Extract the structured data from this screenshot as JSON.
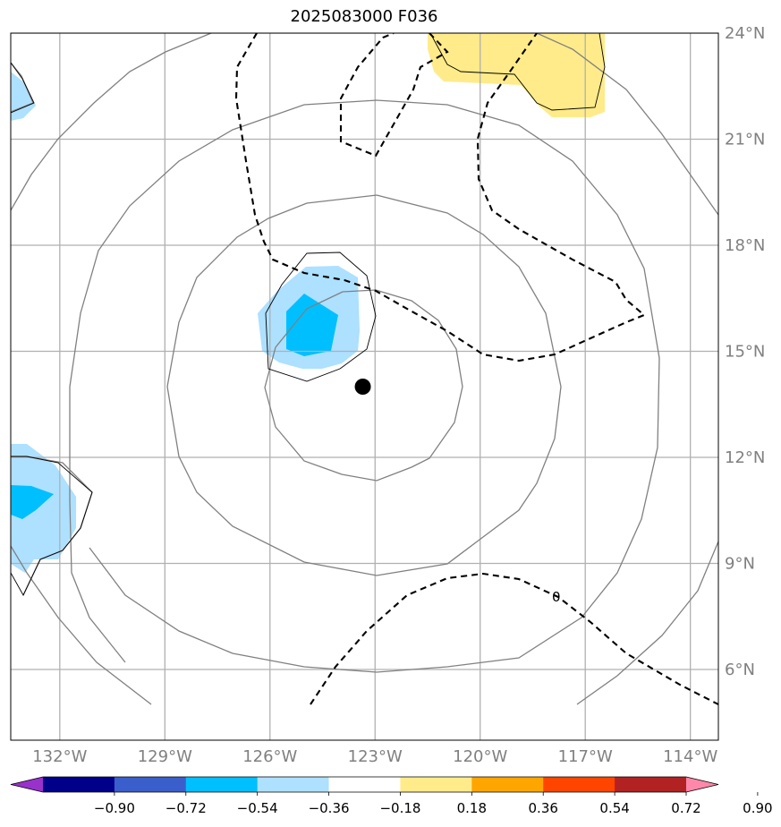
{
  "title": "2025083000 F036",
  "map": {
    "lon_range": [
      -133.4,
      -113.2
    ],
    "lat_range": [
      4.0,
      24.0
    ],
    "lon_ticks": [
      {
        "value": -132,
        "label": "132°W"
      },
      {
        "value": -129,
        "label": "129°W"
      },
      {
        "value": -126,
        "label": "126°W"
      },
      {
        "value": -123,
        "label": "123°W"
      },
      {
        "value": -120,
        "label": "120°W"
      },
      {
        "value": -117,
        "label": "117°W"
      },
      {
        "value": -114,
        "label": "114°W"
      }
    ],
    "lat_ticks": [
      {
        "value": 6,
        "label": "6°N"
      },
      {
        "value": 9,
        "label": "9°N"
      },
      {
        "value": 12,
        "label": "12°N"
      },
      {
        "value": 15,
        "label": "15°N"
      },
      {
        "value": 18,
        "label": "18°N"
      },
      {
        "value": 21,
        "label": "21°N"
      },
      {
        "value": 24,
        "label": "24°N"
      }
    ],
    "storm_center": {
      "lon": -123.35,
      "lat": 14.0
    },
    "contour_label": "0",
    "colors": {
      "grid": "#b0b0b0",
      "ring": "#808080",
      "light_blue": "#aee0ff",
      "blue": "#00bfff",
      "yellow": "#ffeb8a"
    }
  },
  "colorbar": {
    "colors": [
      "#9932cc",
      "#00008b",
      "#3a5fcd",
      "#00bfff",
      "#aee0ff",
      "#ffffff",
      "#ffeb8a",
      "#ffa500",
      "#ff4500",
      "#b22222",
      "#ff88aa"
    ],
    "tick_labels": [
      "−0.90",
      "−0.72",
      "−0.54",
      "−0.36",
      "−0.18",
      "0.18",
      "0.36",
      "0.54",
      "0.72",
      "0.90"
    ]
  }
}
